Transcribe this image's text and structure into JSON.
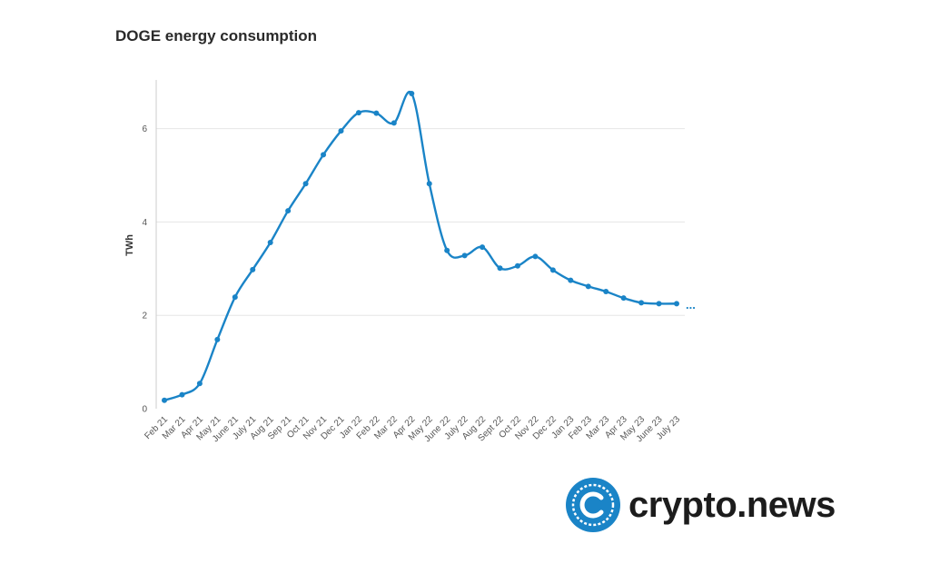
{
  "chart_data": {
    "type": "line",
    "title": "DOGE energy consumption",
    "xlabel": "",
    "ylabel": "TWh",
    "ylim": [
      0,
      7
    ],
    "yticks": [
      0,
      2,
      4,
      6
    ],
    "grid": true,
    "legend": "none",
    "categories": [
      "Feb 21",
      "Mar 21",
      "Apr 21",
      "May 21",
      "June 21",
      "July 21",
      "Aug 21",
      "Sep 21",
      "Oct 21",
      "Nov 21",
      "Dec 21",
      "Jan 22",
      "Feb 22",
      "Mar 22",
      "Apr 22",
      "May 22",
      "June 22",
      "July 22",
      "Aug 22",
      "Sept 22",
      "Oct 22",
      "Nov 22",
      "Dec 22",
      "Jan 23",
      "Feb 23",
      "Mar 23",
      "Apr 23",
      "May 23",
      "June 23",
      "July 23"
    ],
    "series": [
      {
        "color": "#1a84c7",
        "values": [
          0.18,
          0.3,
          0.54,
          1.48,
          2.39,
          2.98,
          3.56,
          4.24,
          4.82,
          5.44,
          5.95,
          6.34,
          6.33,
          6.12,
          6.75,
          4.82,
          3.39,
          3.28,
          3.46,
          3.01,
          3.06,
          3.26,
          2.97,
          2.75,
          2.62,
          2.51,
          2.37,
          2.27,
          2.25,
          2.25
        ]
      }
    ],
    "continuation_marker": "..."
  },
  "brand": {
    "name": "crypto.news",
    "logo_icon": "crypto-news-logo-icon",
    "color": "#1a84c7"
  }
}
